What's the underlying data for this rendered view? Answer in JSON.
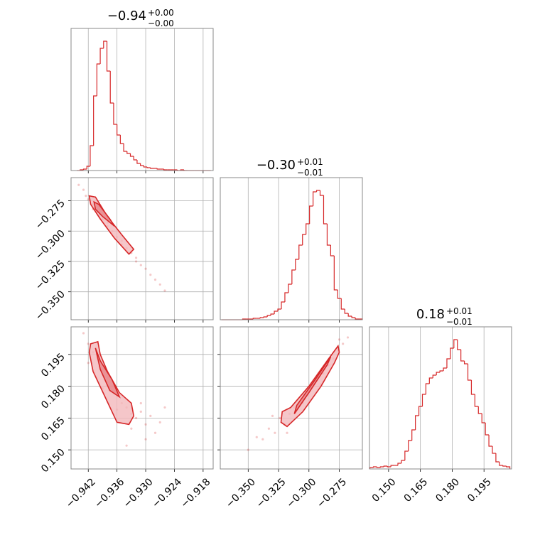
{
  "chart_data": [
    {
      "type": "histogram",
      "title": "−0.94",
      "title_sup": "+0.00",
      "title_sub": "−0.00",
      "color": "#d62728",
      "grid": true,
      "xlim": [
        -0.9456,
        -0.9159
      ],
      "ylim": [
        0,
        200
      ],
      "xticks": [
        -0.942,
        -0.936,
        -0.93,
        -0.924,
        -0.918
      ],
      "bins": [
        -0.9444,
        -0.9437,
        -0.943,
        -0.9423,
        -0.9416,
        -0.9409,
        -0.9402,
        -0.9395,
        -0.9388,
        -0.9381,
        -0.9374,
        -0.9367,
        -0.936,
        -0.9353,
        -0.9346,
        -0.9339,
        -0.9332,
        -0.9325,
        -0.9318,
        -0.9311,
        -0.9304,
        -0.9297,
        -0.929,
        -0.9283,
        -0.9276,
        -0.9269,
        -0.9262,
        -0.9255,
        -0.9248,
        -0.9241,
        -0.9234,
        -0.9227,
        -0.922,
        -0.9213,
        -0.9206,
        -0.9199,
        -0.9192,
        -0.9185,
        -0.9178,
        -0.9171,
        -0.9164
      ],
      "counts": [
        0,
        1,
        2,
        6,
        35,
        105,
        150,
        172,
        182,
        140,
        95,
        65,
        50,
        38,
        27,
        24,
        20,
        15,
        10,
        7,
        5,
        4,
        3,
        3,
        2,
        2,
        1,
        1,
        1,
        1,
        0,
        1,
        0,
        0,
        0,
        0,
        0,
        0,
        0,
        0
      ]
    },
    {
      "type": "scatter",
      "color": "#d62728",
      "grid": true,
      "xlim": [
        -0.9456,
        -0.9159
      ],
      "ylim": [
        -0.373,
        -0.256
      ],
      "xticks": [
        -0.942,
        -0.936,
        -0.93,
        -0.924,
        -0.918
      ],
      "yticks": [
        {
          "value": -0.275,
          "label": "−0.275"
        },
        {
          "value": -0.3,
          "label": "−0.300"
        },
        {
          "value": -0.325,
          "label": "−0.325"
        },
        {
          "value": -0.35,
          "label": "−0.350"
        }
      ],
      "x": [
        -0.944,
        -0.943,
        -0.9425,
        -0.942,
        -0.941,
        -0.94,
        -0.9395,
        -0.939,
        -0.938,
        -0.937,
        -0.936,
        -0.935,
        -0.934,
        -0.933,
        -0.932,
        -0.931,
        -0.93,
        -0.929,
        -0.928,
        -0.927,
        -0.926,
        -0.941,
        -0.938,
        -0.935,
        -0.932
      ],
      "y": [
        -0.262,
        -0.266,
        -0.271,
        -0.274,
        -0.278,
        -0.284,
        -0.286,
        -0.29,
        -0.296,
        -0.3,
        -0.305,
        -0.311,
        -0.314,
        -0.318,
        -0.322,
        -0.328,
        -0.331,
        -0.336,
        -0.34,
        -0.344,
        -0.349,
        -0.282,
        -0.293,
        -0.308,
        -0.325
      ],
      "contours": [
        {
          "x": [
            -0.9418,
            -0.9405,
            -0.938,
            -0.935,
            -0.9325,
            -0.9335,
            -0.9365,
            -0.9395,
            -0.9415
          ],
          "y": [
            -0.271,
            -0.272,
            -0.288,
            -0.303,
            -0.315,
            -0.319,
            -0.306,
            -0.29,
            -0.278
          ]
        },
        {
          "x": [
            -0.9408,
            -0.9398,
            -0.9375,
            -0.9365,
            -0.939,
            -0.9405
          ],
          "y": [
            -0.276,
            -0.278,
            -0.29,
            -0.296,
            -0.288,
            -0.282
          ]
        }
      ]
    },
    {
      "type": "histogram",
      "title": "−0.30",
      "title_sup": "+0.01",
      "title_sub": "−0.01",
      "color": "#d62728",
      "grid": true,
      "xlim": [
        -0.373,
        -0.256
      ],
      "ylim": [
        0,
        200
      ],
      "xticks": [
        -0.35,
        -0.325,
        -0.3,
        -0.275
      ],
      "bins": [
        -0.372,
        -0.3691,
        -0.3662,
        -0.3633,
        -0.3604,
        -0.3575,
        -0.3546,
        -0.3517,
        -0.3488,
        -0.3459,
        -0.343,
        -0.3401,
        -0.3372,
        -0.3343,
        -0.3314,
        -0.3285,
        -0.3256,
        -0.3227,
        -0.3198,
        -0.3169,
        -0.314,
        -0.3111,
        -0.3082,
        -0.3053,
        -0.3024,
        -0.2995,
        -0.2966,
        -0.2937,
        -0.2908,
        -0.2879,
        -0.285,
        -0.2821,
        -0.2792,
        -0.2763,
        -0.2734,
        -0.2705,
        -0.2676,
        -0.2647,
        -0.2618,
        -0.2589,
        -0.256
      ],
      "counts": [
        0,
        0,
        0,
        0,
        0,
        0,
        1,
        1,
        1,
        2,
        2,
        3,
        4,
        6,
        8,
        12,
        15,
        25,
        38,
        50,
        70,
        85,
        105,
        120,
        135,
        160,
        180,
        182,
        175,
        135,
        105,
        90,
        42,
        30,
        15,
        9,
        5,
        3,
        1,
        1
      ]
    },
    {
      "type": "scatter",
      "color": "#d62728",
      "grid": true,
      "xlim": [
        -0.9456,
        -0.9159
      ],
      "ylim": [
        0.141,
        0.208
      ],
      "xticks": [
        {
          "value": -0.942,
          "label": "−0.942"
        },
        {
          "value": -0.936,
          "label": "−0.936"
        },
        {
          "value": -0.93,
          "label": "−0.930"
        },
        {
          "value": -0.924,
          "label": "−0.924"
        },
        {
          "value": -0.918,
          "label": "−0.918"
        }
      ],
      "yticks": [
        {
          "value": 0.195,
          "label": "0.195"
        },
        {
          "value": 0.18,
          "label": "0.180"
        },
        {
          "value": 0.165,
          "label": "0.165"
        },
        {
          "value": 0.15,
          "label": "0.150"
        }
      ],
      "x": [
        -0.943,
        -0.942,
        -0.941,
        -0.94,
        -0.939,
        -0.938,
        -0.937,
        -0.936,
        -0.935,
        -0.934,
        -0.933,
        -0.932,
        -0.931,
        -0.93,
        -0.929,
        -0.928,
        -0.927,
        -0.926,
        -0.942,
        -0.939,
        -0.936,
        -0.933,
        -0.93,
        -0.934,
        -0.931
      ],
      "y": [
        0.205,
        0.2,
        0.196,
        0.193,
        0.188,
        0.184,
        0.18,
        0.176,
        0.172,
        0.17,
        0.167,
        0.165,
        0.168,
        0.162,
        0.166,
        0.158,
        0.163,
        0.17,
        0.191,
        0.179,
        0.169,
        0.16,
        0.155,
        0.152,
        0.172
      ],
      "contours": [
        {
          "x": [
            -0.9415,
            -0.94,
            -0.9395,
            -0.938,
            -0.9355,
            -0.933,
            -0.9325,
            -0.9335,
            -0.936,
            -0.9385,
            -0.941,
            -0.9418
          ],
          "y": [
            0.2,
            0.201,
            0.195,
            0.187,
            0.177,
            0.172,
            0.166,
            0.162,
            0.163,
            0.175,
            0.187,
            0.196
          ]
        },
        {
          "x": [
            -0.9405,
            -0.9395,
            -0.937,
            -0.9355,
            -0.9375,
            -0.9395
          ],
          "y": [
            0.198,
            0.192,
            0.183,
            0.175,
            0.178,
            0.188
          ]
        }
      ]
    },
    {
      "type": "scatter",
      "color": "#d62728",
      "grid": true,
      "xlim": [
        -0.373,
        -0.256
      ],
      "ylim": [
        0.141,
        0.208
      ],
      "xticks": [
        {
          "value": -0.35,
          "label": "−0.350"
        },
        {
          "value": -0.325,
          "label": "−0.325"
        },
        {
          "value": -0.3,
          "label": "−0.300"
        },
        {
          "value": -0.275,
          "label": "−0.275"
        }
      ],
      "yticks": [
        0.195,
        0.18,
        0.165,
        0.15
      ],
      "x": [
        -0.35,
        -0.343,
        -0.338,
        -0.333,
        -0.328,
        -0.324,
        -0.32,
        -0.316,
        -0.312,
        -0.308,
        -0.304,
        -0.3,
        -0.296,
        -0.292,
        -0.288,
        -0.284,
        -0.28,
        -0.276,
        -0.272,
        -0.268,
        -0.33,
        -0.318,
        -0.305,
        -0.29,
        -0.275
      ],
      "y": [
        0.15,
        0.156,
        0.155,
        0.16,
        0.158,
        0.165,
        0.162,
        0.167,
        0.17,
        0.171,
        0.175,
        0.178,
        0.181,
        0.184,
        0.186,
        0.19,
        0.193,
        0.197,
        0.2,
        0.203,
        0.166,
        0.158,
        0.172,
        0.181,
        0.202
      ],
      "contours": [
        {
          "x": [
            -0.322,
            -0.315,
            -0.3,
            -0.285,
            -0.276,
            -0.275,
            -0.279,
            -0.29,
            -0.305,
            -0.318,
            -0.323
          ],
          "y": [
            0.168,
            0.17,
            0.18,
            0.192,
            0.199,
            0.196,
            0.191,
            0.18,
            0.168,
            0.161,
            0.163
          ]
        },
        {
          "x": [
            -0.31,
            -0.295,
            -0.282,
            -0.285,
            -0.3,
            -0.312
          ],
          "y": [
            0.171,
            0.183,
            0.194,
            0.19,
            0.177,
            0.167
          ]
        }
      ]
    },
    {
      "type": "histogram",
      "title": "0.18",
      "title_sup": "+0.01",
      "title_sub": "−0.01",
      "color": "#d62728",
      "grid": true,
      "xlim": [
        0.141,
        0.208
      ],
      "ylim": [
        0,
        200
      ],
      "xticks": [
        {
          "value": 0.15,
          "label": "0.150"
        },
        {
          "value": 0.165,
          "label": "0.165"
        },
        {
          "value": 0.18,
          "label": "0.180"
        },
        {
          "value": 0.195,
          "label": "0.195"
        }
      ],
      "bins": [
        0.1412,
        0.14285,
        0.1445,
        0.14615,
        0.1478,
        0.14945,
        0.1511,
        0.15275,
        0.1544,
        0.15605,
        0.1577,
        0.15935,
        0.161,
        0.16265,
        0.1643,
        0.16595,
        0.1676,
        0.16925,
        0.1709,
        0.17255,
        0.1742,
        0.17585,
        0.1775,
        0.17915,
        0.1808,
        0.18245,
        0.1841,
        0.18575,
        0.1874,
        0.18905,
        0.1907,
        0.19235,
        0.194,
        0.19565,
        0.1973,
        0.19895,
        0.2006,
        0.20225,
        0.2039,
        0.20555,
        0.2072
      ],
      "counts": [
        2,
        3,
        2,
        3,
        4,
        3,
        5,
        5,
        8,
        12,
        25,
        40,
        55,
        75,
        88,
        105,
        120,
        128,
        132,
        136,
        138,
        142,
        155,
        170,
        182,
        168,
        152,
        148,
        125,
        105,
        88,
        78,
        65,
        48,
        32,
        22,
        10,
        5,
        4,
        3
      ]
    }
  ]
}
